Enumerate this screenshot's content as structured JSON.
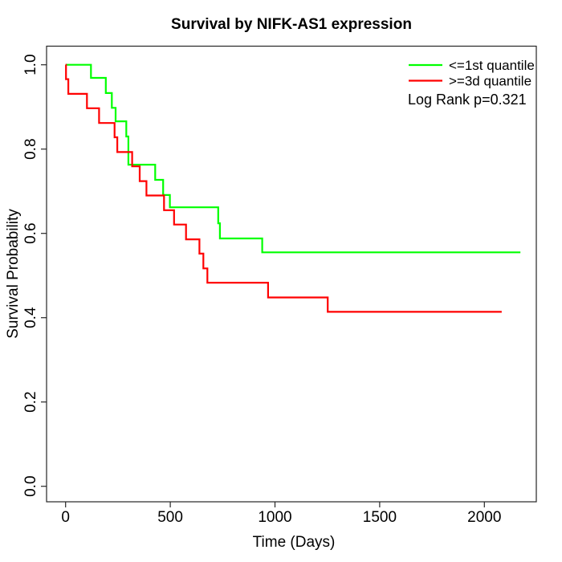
{
  "chart_data": {
    "type": "line",
    "chart_kind": "kaplan-meier-step",
    "title": "Survival by NIFK-AS1 expression",
    "xlabel": "Time (Days)",
    "ylabel": "Survival Probability",
    "x_ticks": [
      "0",
      "500",
      "1000",
      "1500",
      "2000"
    ],
    "y_ticks": [
      "0.0",
      "0.2",
      "0.4",
      "0.6",
      "0.8",
      "1.0"
    ],
    "x_axis_range_days": [
      0,
      2200
    ],
    "y_axis_range": [
      0.0,
      1.0
    ],
    "grid": false,
    "legend_position": "topright",
    "legend": {
      "entries": [
        {
          "label": "<=1st quantile",
          "color": "#00ff00"
        },
        {
          "label": ">=3d quantile",
          "color": "#ff0000"
        }
      ],
      "annotation": "Log Rank p=0.321"
    },
    "series": [
      {
        "name": "<=1st quantile",
        "color": "#00ff00",
        "end_time": 2172,
        "points": [
          [
            0,
            1.0
          ],
          [
            121,
            0.969
          ],
          [
            192,
            0.933
          ],
          [
            221,
            0.898
          ],
          [
            239,
            0.866
          ],
          [
            290,
            0.83
          ],
          [
            300,
            0.763
          ],
          [
            428,
            0.727
          ],
          [
            466,
            0.691
          ],
          [
            498,
            0.662
          ],
          [
            729,
            0.624
          ],
          [
            737,
            0.588
          ],
          [
            939,
            0.555
          ]
        ]
      },
      {
        "name": ">=3d quantile",
        "color": "#ff0000",
        "end_time": 2083,
        "points": [
          [
            0,
            1.0
          ],
          [
            2,
            0.966
          ],
          [
            13,
            0.931
          ],
          [
            102,
            0.897
          ],
          [
            160,
            0.862
          ],
          [
            234,
            0.828
          ],
          [
            247,
            0.793
          ],
          [
            318,
            0.759
          ],
          [
            354,
            0.724
          ],
          [
            386,
            0.69
          ],
          [
            470,
            0.655
          ],
          [
            518,
            0.621
          ],
          [
            575,
            0.586
          ],
          [
            639,
            0.552
          ],
          [
            658,
            0.517
          ],
          [
            677,
            0.483
          ],
          [
            967,
            0.448
          ],
          [
            1252,
            0.414
          ]
        ]
      }
    ]
  }
}
